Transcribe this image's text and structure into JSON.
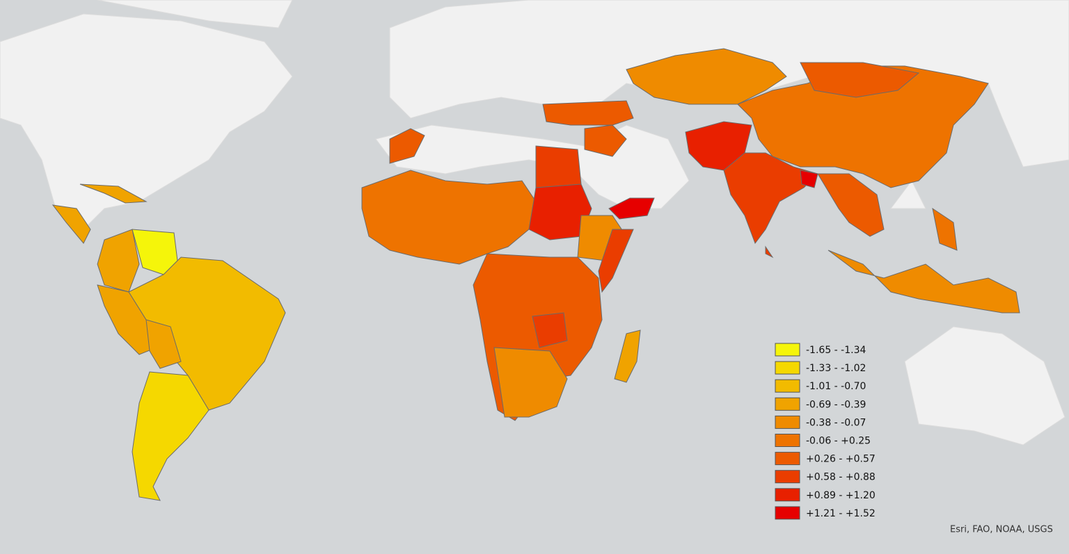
{
  "legend": {
    "items": [
      {
        "label": "-1.65 - -1.34",
        "color": "#f5f50a"
      },
      {
        "label": "-1.33 - -1.02",
        "color": "#f5d800"
      },
      {
        "label": "-1.01 - -0.70",
        "color": "#f2bb00"
      },
      {
        "label": "-0.69 - -0.39",
        "color": "#f0a300"
      },
      {
        "label": "-0.38 - -0.07",
        "color": "#ef8b00"
      },
      {
        "label": "-0.06 - +0.25",
        "color": "#ee7300"
      },
      {
        "label": "+0.26 - +0.57",
        "color": "#ec5a00"
      },
      {
        "label": "+0.58 - +0.88",
        "color": "#ea3d00"
      },
      {
        "label": "+0.89 - +1.20",
        "color": "#e82000"
      },
      {
        "label": "+1.21 - +1.52",
        "color": "#e60000"
      }
    ]
  },
  "attribution": "Esri, FAO, NOAA, USGS"
}
